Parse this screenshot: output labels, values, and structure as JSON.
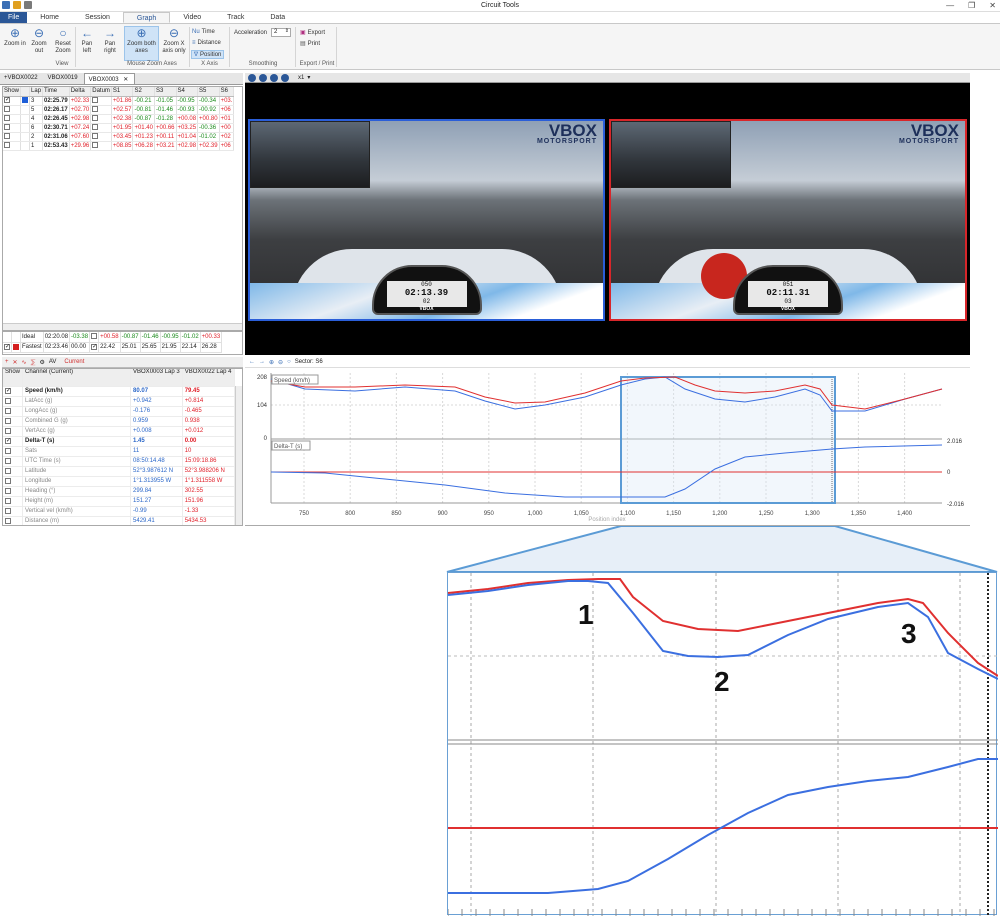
{
  "window": {
    "title": "Circuit Tools",
    "controls": [
      "—",
      "❐",
      "✕"
    ]
  },
  "menu": {
    "tabs": [
      "File",
      "Home",
      "Session",
      "Graph",
      "Video",
      "Track",
      "Data"
    ],
    "active": "Graph"
  },
  "ribbon": {
    "view": {
      "zoom_in": "Zoom in",
      "zoom_out": "Zoom out",
      "reset_zoom": "Reset Zoom",
      "group": "View"
    },
    "mouse_zoom": {
      "pan_left": "Pan left",
      "pan_right": "Pan right",
      "zoom_both": "Zoom both axes",
      "zoom_x": "Zoom X axis only",
      "group": "Mouse Zoom Axes"
    },
    "x_axis": {
      "time": "Time",
      "distance": "Distance",
      "position": "Position",
      "group": "X Axis"
    },
    "smoothing": {
      "acceleration_label": "Acceleration",
      "acceleration_value": "2",
      "group": "Smoothing"
    },
    "export_print": {
      "export": "Export",
      "print": "Print",
      "group": "Export / Print"
    }
  },
  "file_tabs": [
    "+VBOX0022",
    "VBOX0019",
    "VBOX0003"
  ],
  "lap_table": {
    "headers": [
      "Show",
      "",
      "Lap",
      "Time",
      "Delta",
      "Datum",
      "S1",
      "S2",
      "S3",
      "S4",
      "S5",
      "S6"
    ],
    "rows": [
      {
        "show": true,
        "color": "#1f5fd8",
        "lap": "3",
        "time": "02:25.79",
        "delta": "+02.33",
        "datum": false,
        "s": [
          "+01.86",
          "-00.21",
          "-01.05",
          "-00.95",
          "-00.34",
          "+03."
        ],
        "sc": [
          "red",
          "green",
          "green",
          "green",
          "green",
          "red"
        ]
      },
      {
        "show": false,
        "color": "",
        "lap": "5",
        "time": "02:26.17",
        "delta": "+02.70",
        "datum": false,
        "s": [
          "+02.57",
          "-00.81",
          "-01.46",
          "-00.93",
          "-00.92",
          "+06"
        ],
        "sc": [
          "red",
          "green",
          "green",
          "green",
          "green",
          "red"
        ]
      },
      {
        "show": false,
        "color": "",
        "lap": "4",
        "time": "02:26.45",
        "delta": "+02.98",
        "datum": false,
        "s": [
          "+02.38",
          "-00.87",
          "-01.28",
          "+00.08",
          "+00.80",
          "+01"
        ],
        "sc": [
          "red",
          "green",
          "green",
          "red",
          "red",
          "red"
        ]
      },
      {
        "show": false,
        "color": "",
        "lap": "6",
        "time": "02:30.71",
        "delta": "+07.24",
        "datum": false,
        "s": [
          "+01.95",
          "+01.40",
          "+00.66",
          "+03.25",
          "-00.36",
          "+00"
        ],
        "sc": [
          "red",
          "red",
          "red",
          "red",
          "green",
          "red"
        ]
      },
      {
        "show": false,
        "color": "",
        "lap": "2",
        "time": "02:31.06",
        "delta": "+07.60",
        "datum": false,
        "s": [
          "+03.45",
          "+01.23",
          "+00.11",
          "+01.04",
          "-01.02",
          "+02"
        ],
        "sc": [
          "red",
          "red",
          "red",
          "red",
          "green",
          "red"
        ]
      },
      {
        "show": false,
        "color": "",
        "lap": "1",
        "time": "02:53.43",
        "delta": "+29.96",
        "datum": false,
        "s": [
          "+08.85",
          "+06.28",
          "+03.21",
          "+02.98",
          "+02.39",
          "+06"
        ],
        "sc": [
          "red",
          "red",
          "red",
          "red",
          "red",
          "red"
        ]
      }
    ]
  },
  "ideal_fastest": [
    {
      "label": "Ideal",
      "time": "02:20.08",
      "delta": "-03.38",
      "datum": false,
      "s": [
        "+00.58",
        "-00.87",
        "-01.46",
        "-00.95",
        "-01.02",
        "+00.33"
      ],
      "sc": [
        "red",
        "green",
        "green",
        "green",
        "green",
        "red"
      ]
    },
    {
      "label": "Fastest",
      "time": "02:23.46",
      "delta": "00.00",
      "datum": true,
      "s": [
        "22.42",
        "25.01",
        "25.65",
        "21.95",
        "22.14",
        "26.28"
      ],
      "sc": [
        "",
        "",
        "",
        "",
        "",
        ""
      ],
      "color": "#d41f1f"
    }
  ],
  "channel_toolbar": {
    "current_label": "Current"
  },
  "channel_table": {
    "headers": {
      "show": "Show",
      "channel": "Channel (Current)",
      "a": "VBOX0003 Lap 3",
      "b": "VBOX0022 Lap 4"
    },
    "rows": [
      {
        "show": true,
        "name": "Speed (km/h)",
        "a": "80.07",
        "b": "79.45",
        "bold": true
      },
      {
        "show": false,
        "name": "LatAcc (g)",
        "a": "+0.942",
        "b": "+0.814"
      },
      {
        "show": false,
        "name": "LongAcc (g)",
        "a": "-0.176",
        "b": "-0.465"
      },
      {
        "show": false,
        "name": "Combined G (g)",
        "a": "0.959",
        "b": "0.938"
      },
      {
        "show": false,
        "name": "VertAcc (g)",
        "a": "+0.008",
        "b": "+0.012"
      },
      {
        "show": true,
        "name": "Delta-T (s)",
        "a": "1.45",
        "b": "0.00",
        "bold": true
      },
      {
        "show": false,
        "name": "Sats",
        "a": "11",
        "b": "10"
      },
      {
        "show": false,
        "name": "UTC Time (s)",
        "a": "08:50:14.48",
        "b": "15:09:18.86"
      },
      {
        "show": false,
        "name": "Latitude",
        "a": "52°3.987612 N",
        "b": "52°3.988206 N"
      },
      {
        "show": false,
        "name": "Longitude",
        "a": "1°1.313955 W",
        "b": "1°1.311558 W"
      },
      {
        "show": false,
        "name": "Heading (°)",
        "a": "299.84",
        "b": "302.55"
      },
      {
        "show": false,
        "name": "Height (m)",
        "a": "151.27",
        "b": "151.96"
      },
      {
        "show": false,
        "name": "Vertical vel (km/h)",
        "a": "-0.99",
        "b": "-1.33"
      },
      {
        "show": false,
        "name": "Distance (m)",
        "a": "5429.41",
        "b": "5434.53"
      }
    ]
  },
  "video": {
    "speed_label": "x1",
    "logo_big": "VBOX",
    "logo_small": "MOTORSPORT",
    "left_dash": {
      "top": "050",
      "time": "02:13.39",
      "lap": "02"
    },
    "right_dash": {
      "top": "051",
      "time": "02:11.31",
      "lap": "03"
    },
    "dash_brand": "VBOX"
  },
  "graph": {
    "sector_label": "Sector: S6",
    "speed_label": "Speed (km/h)",
    "delta_label": "Delta-T (s)",
    "speed_ticks": [
      "208",
      "104",
      "0"
    ],
    "delta_ticks": [
      "2.016",
      "0",
      "-2.016"
    ],
    "x_ticks": [
      "750",
      "800",
      "850",
      "900",
      "950",
      "1,000",
      "1,050",
      "1,100",
      "1,150",
      "1,200",
      "1,250",
      "1,300",
      "1,350",
      "1,400"
    ],
    "x_label": "Position index"
  },
  "callouts": [
    "1",
    "2",
    "3"
  ],
  "colors": {
    "accent": "#2b5797",
    "series_a": "#3b6fe0",
    "series_b": "#e03030",
    "zoom": "#6aa0d4"
  }
}
